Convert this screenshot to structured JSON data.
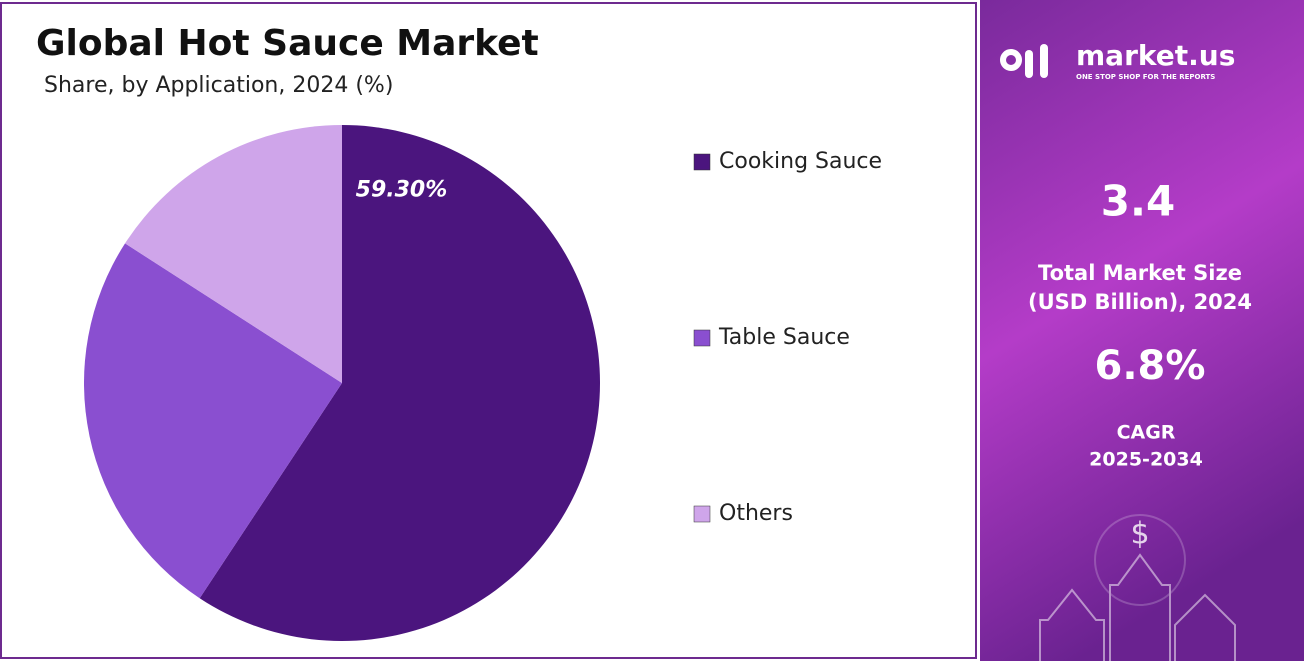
{
  "chart_data": {
    "type": "pie",
    "title": "Global Hot Sauce Market",
    "subtitle": "Share, by Application, 2024 (%)",
    "categories": [
      "Cooking Sauce",
      "Table Sauce",
      "Others"
    ],
    "values": [
      59.3,
      24.8,
      15.9
    ],
    "value_labels": [
      "59.30%",
      null,
      null
    ],
    "colors": [
      "#4b157e",
      "#8a4fd0",
      "#cfa5ea"
    ],
    "legend": "right"
  },
  "side_panel": {
    "brand": "market.us",
    "tagline": "ONE STOP SHOP FOR THE REPORTS",
    "market_size": "3.4",
    "market_size_label": [
      "Total Market Size",
      "(USD Billion), 2024"
    ],
    "cagr": "6.8%",
    "cagr_label": [
      "CAGR",
      "2025-2034"
    ]
  }
}
